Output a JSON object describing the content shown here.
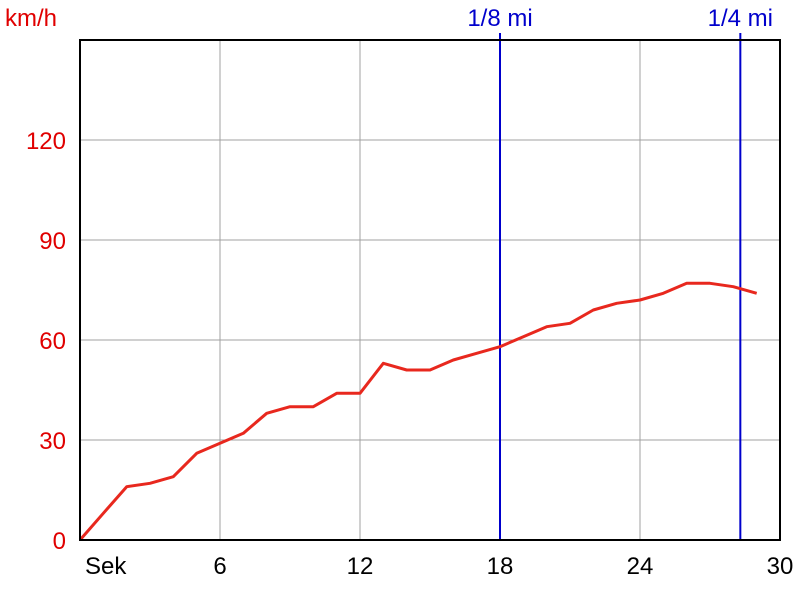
{
  "chart_data": {
    "type": "line",
    "ylabel": "km/h",
    "xlabel": "Sek",
    "xlim": [
      0,
      30
    ],
    "ylim": [
      0,
      150
    ],
    "x_ticks": [
      6,
      12,
      18,
      24,
      30
    ],
    "y_ticks": [
      0,
      30,
      60,
      90,
      120
    ],
    "grid": true,
    "series": [
      {
        "x": [
          0,
          1,
          2,
          3,
          4,
          5,
          6,
          7,
          8,
          9,
          10,
          11,
          12,
          13,
          14,
          15,
          16,
          17,
          18,
          19,
          20,
          21,
          22,
          23,
          24,
          25,
          26,
          27,
          28,
          29
        ],
        "values": [
          0,
          8,
          16,
          17,
          19,
          26,
          29,
          32,
          38,
          40,
          40,
          44,
          44,
          53,
          51,
          51,
          54,
          56,
          58,
          61,
          64,
          65,
          69,
          71,
          72,
          74,
          77,
          77,
          76,
          74
        ]
      }
    ],
    "markers": [
      {
        "label": "1/8 mi",
        "x": 18
      },
      {
        "label": "1/4 mi",
        "x": 28.3
      }
    ],
    "colors": {
      "line": "#e8281e",
      "axis_text": "#e00000",
      "marker": "#0000cc",
      "grid": "#a0a0a0"
    }
  }
}
